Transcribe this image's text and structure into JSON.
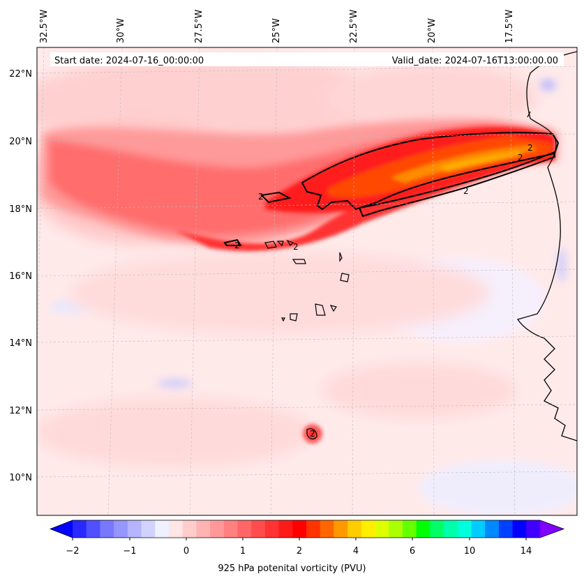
{
  "header": {
    "start_date": "Start date: 2024-07-16_00:00:00",
    "valid_date": "Valid_date: 2024-07-16T13:00:00.00"
  },
  "longitude_labels": [
    "32.5°W",
    "30°W",
    "27.5°W",
    "25°W",
    "22.5°W",
    "20°W",
    "17.5°W"
  ],
  "latitude_labels": [
    "22°N",
    "20°N",
    "18°N",
    "16°N",
    "14°N",
    "12°N",
    "10°N"
  ],
  "colorbar": {
    "label": "925 hPa potenital vorticity (PVU)",
    "tick_labels": [
      "−2",
      "−1",
      "0",
      "1",
      "2",
      "4",
      "6",
      "10",
      "14"
    ],
    "colors": [
      "#0000ff",
      "#2828ff",
      "#5050ff",
      "#7878ff",
      "#9696ff",
      "#b4b4ff",
      "#d2d2ff",
      "#f0f0ff",
      "#ffe6e6",
      "#ffcccc",
      "#ffb3b3",
      "#ff9999",
      "#ff8080",
      "#ff6666",
      "#ff4d4d",
      "#ff3333",
      "#ff1a1a",
      "#ff0000",
      "#ff3300",
      "#ff6600",
      "#ff9900",
      "#ffcc00",
      "#ffee00",
      "#ddff00",
      "#aaff00",
      "#66ff00",
      "#00ff00",
      "#00ff66",
      "#00ffaa",
      "#00ffdd",
      "#00ccff",
      "#0088ff",
      "#0040ff",
      "#0000ff",
      "#4000ff",
      "#8000ff"
    ]
  },
  "contour_label": "2",
  "colors": {
    "background": "#ffecec",
    "coast": "#000000"
  }
}
